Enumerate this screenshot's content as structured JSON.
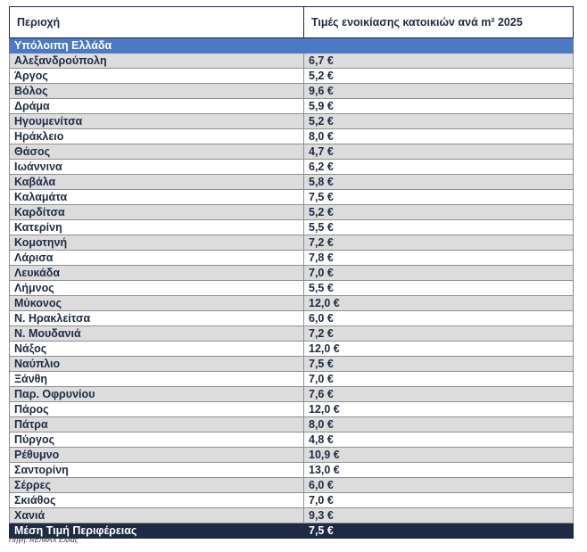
{
  "header": {
    "col1": "Περιοχή",
    "col2": "Τιμές ενοικίασης κατοικιών ανά m² 2025"
  },
  "region_title": "Υπόλοιπη Ελλάδα",
  "rows": [
    {
      "area": "Αλεξανδρούπολη",
      "price": "6,7 €"
    },
    {
      "area": "Άργος",
      "price": "5,2 €"
    },
    {
      "area": "Βόλος",
      "price": "9,6 €"
    },
    {
      "area": "Δράμα",
      "price": "5,9 €"
    },
    {
      "area": "Ηγουμενίτσα",
      "price": "5,2 €"
    },
    {
      "area": "Ηράκλειο",
      "price": "8,0 €"
    },
    {
      "area": "Θάσος",
      "price": "4,7 €"
    },
    {
      "area": "Ιωάννινα",
      "price": "6,2 €"
    },
    {
      "area": "Καβάλα",
      "price": "5,8 €"
    },
    {
      "area": "Καλαμάτα",
      "price": "7,5 €"
    },
    {
      "area": "Καρδίτσα",
      "price": "5,2 €"
    },
    {
      "area": "Κατερίνη",
      "price": "5,5 €"
    },
    {
      "area": "Κομοτηνή",
      "price": "7,2 €"
    },
    {
      "area": "Λάρισα",
      "price": "7,8 €"
    },
    {
      "area": "Λευκάδα",
      "price": "7,0 €"
    },
    {
      "area": "Λήμνος",
      "price": "5,5 €"
    },
    {
      "area": "Μύκονος",
      "price": "12,0 €"
    },
    {
      "area": "Ν. Ηρακλείτσα",
      "price": "6,0 €"
    },
    {
      "area": "Ν. Μουδανιά",
      "price": "7,2 €"
    },
    {
      "area": "Νάξος",
      "price": "12,0 €"
    },
    {
      "area": "Ναύπλιο",
      "price": "7,5 €"
    },
    {
      "area": "Ξάνθη",
      "price": "7,0 €"
    },
    {
      "area": "Παρ. Οφρυνίου",
      "price": "7,6 €"
    },
    {
      "area": "Πάρος",
      "price": "12,0 €"
    },
    {
      "area": "Πάτρα",
      "price": "8,0 €"
    },
    {
      "area": "Πύργος",
      "price": "4,8 €"
    },
    {
      "area": "Ρέθυμνο",
      "price": "10,9 €"
    },
    {
      "area": "Σαντορίνη",
      "price": "13,0 €"
    },
    {
      "area": "Σέρρες",
      "price": "6,0 €"
    },
    {
      "area": "Σκιάθος",
      "price": "7,0 €"
    },
    {
      "area": "Χανιά",
      "price": "9,3 €"
    }
  ],
  "total": {
    "label": "Μέση Τιμή Περιφέρειας",
    "price": "7,5 €"
  },
  "source": "Πηγή: RE/MAX Ελλάς",
  "colors": {
    "header_text": "#1f2a44",
    "region_bg": "#4b79c4",
    "total_bg": "#1f2a44",
    "stripe": "#dcdcdc"
  }
}
